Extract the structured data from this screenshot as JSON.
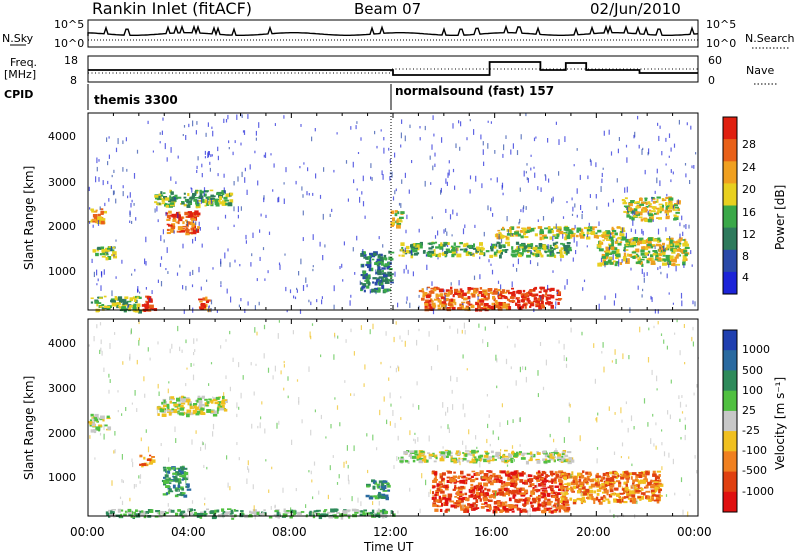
{
  "header": {
    "station": "Rankin Inlet (fitACF)",
    "beam": "Beam 07",
    "date": "02/Jun/2010"
  },
  "noise_panel": {
    "left_label": "N.Sky",
    "right_label": "N.Search",
    "y_ticks_left": [
      "10^5",
      "10^0"
    ],
    "y_ticks_right": [
      "10^5",
      "10^0"
    ]
  },
  "freq_panel": {
    "left_label_1": "Freq.",
    "left_label_2": "[MHz]",
    "right_label": "Nave",
    "y_ticks_left": [
      "18",
      "8"
    ],
    "y_ticks_right": [
      "60",
      "0"
    ]
  },
  "cpid_panel": {
    "label": "CPID",
    "segments": [
      {
        "name": "themis 3300",
        "start_hour": 0
      },
      {
        "name": "normalsound (fast) 157",
        "start_hour": 12
      }
    ]
  },
  "x_axis": {
    "label": "Time UT",
    "ticks": [
      "00:00",
      "04:00",
      "08:00",
      "12:00",
      "16:00",
      "20:00",
      "00:00"
    ]
  },
  "power_panel": {
    "ylabel": "Slant Range [km]",
    "y_ticks": [
      "1000",
      "2000",
      "3000",
      "4000"
    ],
    "colorbar_label": "Power [dB]",
    "colorbar_ticks": [
      "4",
      "8",
      "12",
      "16",
      "20",
      "24",
      "28"
    ],
    "colors": [
      "#1c24d8",
      "#2a4aa8",
      "#2e7a5c",
      "#3aa848",
      "#e8d020",
      "#f0a020",
      "#e86018",
      "#e02010"
    ]
  },
  "velocity_panel": {
    "ylabel": "Slant Range [km]",
    "y_ticks": [
      "1000",
      "2000",
      "3000",
      "4000"
    ],
    "colorbar_label": "Velocity [m s⁻¹]",
    "colorbar_ticks": [
      "1000",
      "500",
      "100",
      "25",
      "-25",
      "-100",
      "-500",
      "-1000"
    ],
    "colors": [
      "#2040b0",
      "#2a6aa0",
      "#2e8a5a",
      "#50c040",
      "#c8c8c8",
      "#f0c020",
      "#f08020",
      "#e04010",
      "#e01010"
    ]
  },
  "chart_data": {
    "type": "heatmap",
    "x": {
      "unit": "hour UT",
      "range": [
        0,
        24
      ]
    },
    "y": {
      "unit": "km",
      "range": [
        180,
        4550
      ]
    },
    "power_blobs": [
      {
        "t0": 0.1,
        "t1": 2.0,
        "r0": 180,
        "r1": 500,
        "level": 3
      },
      {
        "t0": 0.0,
        "t1": 0.6,
        "r0": 2100,
        "r1": 2450,
        "level": 5
      },
      {
        "t0": 0.1,
        "t1": 1.0,
        "r0": 1350,
        "r1": 1600,
        "level": 3
      },
      {
        "t0": 2.6,
        "t1": 5.6,
        "r0": 2500,
        "r1": 2850,
        "level": 3
      },
      {
        "t0": 3.0,
        "t1": 4.3,
        "r0": 1900,
        "r1": 2400,
        "level": 6
      },
      {
        "t0": 2.1,
        "t1": 2.6,
        "r0": 190,
        "r1": 500,
        "level": 7
      },
      {
        "t0": 4.3,
        "t1": 4.7,
        "r0": 190,
        "r1": 500,
        "level": 6
      },
      {
        "t0": 10.7,
        "t1": 11.9,
        "r0": 600,
        "r1": 1500,
        "level": 2
      },
      {
        "t0": 11.9,
        "t1": 12.3,
        "r0": 2050,
        "r1": 2400,
        "level": 4
      },
      {
        "t0": 12.2,
        "t1": 19.0,
        "r0": 1400,
        "r1": 1700,
        "level": 3
      },
      {
        "t0": 16.0,
        "t1": 21.0,
        "r0": 1800,
        "r1": 2050,
        "level": 4
      },
      {
        "t0": 13.0,
        "t1": 16.5,
        "r0": 200,
        "r1": 700,
        "level": 6
      },
      {
        "t0": 16.5,
        "t1": 18.5,
        "r0": 250,
        "r1": 700,
        "level": 7
      },
      {
        "t0": 20.0,
        "t1": 23.5,
        "r0": 1200,
        "r1": 1800,
        "level": 4
      },
      {
        "t0": 21.0,
        "t1": 23.2,
        "r0": 2200,
        "r1": 2700,
        "level": 4
      }
    ],
    "velocity_blobs": [
      {
        "t0": 0.0,
        "t1": 0.8,
        "r0": 2100,
        "r1": 2450,
        "level": 4
      },
      {
        "t0": 2.7,
        "t1": 5.4,
        "r0": 2450,
        "r1": 2850,
        "level": 4
      },
      {
        "t0": 2.9,
        "t1": 3.9,
        "r0": 650,
        "r1": 1300,
        "level": 2
      },
      {
        "t0": 2.0,
        "t1": 2.5,
        "r0": 1300,
        "r1": 1550,
        "level": 6
      },
      {
        "t0": 10.9,
        "t1": 11.8,
        "r0": 600,
        "r1": 1000,
        "level": 2
      },
      {
        "t0": 12.2,
        "t1": 19.0,
        "r0": 1400,
        "r1": 1650,
        "level": 4
      },
      {
        "t0": 13.5,
        "t1": 18.8,
        "r0": 300,
        "r1": 1200,
        "level": 7
      },
      {
        "t0": 18.5,
        "t1": 22.5,
        "r0": 500,
        "r1": 1200,
        "level": 6
      },
      {
        "t0": 0.5,
        "t1": 12.0,
        "r0": 180,
        "r1": 350,
        "level": 3
      }
    ]
  }
}
